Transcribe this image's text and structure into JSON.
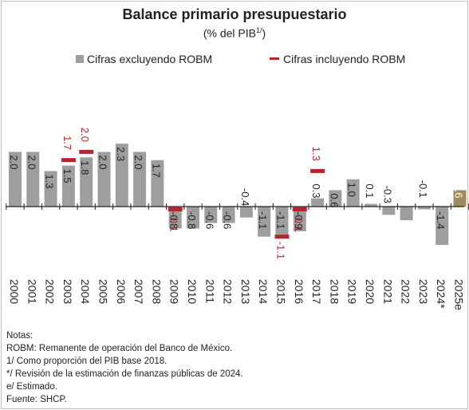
{
  "chart_data": {
    "type": "bar",
    "title": "Balance primario presupuestario",
    "subtitle": "(% del PIB",
    "subtitle_sup": "1/",
    "subtitle_end": ")",
    "categories": [
      "2000",
      "2001",
      "2002",
      "2003",
      "2004",
      "2005",
      "2006",
      "2007",
      "2008",
      "2009",
      "2010",
      "2011",
      "2012",
      "2013",
      "2014",
      "2015",
      "2016",
      "2017",
      "2018",
      "2019",
      "2020",
      "2021",
      "2022",
      "2023",
      "2024*",
      "2025e"
    ],
    "series": [
      {
        "name": "Cifras excluyendo ROBM",
        "values": [
          2.0,
          2.0,
          1.3,
          1.5,
          1.8,
          2.0,
          2.3,
          2.0,
          1.7,
          -0.8,
          -0.8,
          -0.6,
          -0.6,
          -0.4,
          -1.1,
          -1.1,
          -0.9,
          0.3,
          0.6,
          1.0,
          0.1,
          -0.3,
          -0.5,
          -0.1,
          -1.4,
          0.6
        ],
        "labels": [
          "2.0",
          "2.0",
          "1.3",
          "1.5",
          "1.8",
          "2.0",
          "2.3",
          "2.0",
          "1.7",
          "-0.8",
          "-0.8",
          "-0.6",
          "-0.6",
          "-0.4",
          "-1.1",
          "-1.1",
          "-0.9",
          "0.3",
          "0.6",
          "1.0",
          "0.1",
          "-0.3",
          "",
          "-0.1",
          "-1.4",
          "0.6"
        ],
        "color": "#9e9e9e",
        "highlight_index": 25,
        "highlight_color": "#a08a5c"
      },
      {
        "name": "Cifras incluyendo ROBM",
        "points": [
          {
            "index": 3,
            "value": 1.7,
            "label": "1.7"
          },
          {
            "index": 4,
            "value": 2.0,
            "label": "2.0"
          },
          {
            "index": 9,
            "value": -0.1,
            "label": "-0.1"
          },
          {
            "index": 15,
            "value": -1.1,
            "label": "-1.1"
          },
          {
            "index": 16,
            "value": -0.1,
            "label": "-0.1"
          },
          {
            "index": 17,
            "value": 1.3,
            "label": "1.3"
          }
        ],
        "color": "#b3262b"
      }
    ],
    "ylim": [
      -1.6,
      2.6
    ],
    "grid": false,
    "legend_position": "top"
  },
  "notes": [
    "Notas:",
    "ROBM: Remanente de operación del Banco de México.",
    "1/ Como proporción del PIB base 2018.",
    "*/ Revisión de la estimación de finanzas públicas de 2024.",
    "e/ Estimado.",
    "Fuente: SHCP."
  ]
}
